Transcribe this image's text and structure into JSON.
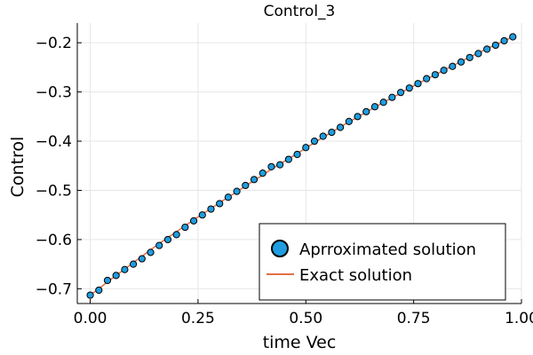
{
  "chart_data": {
    "type": "scatter",
    "title": "Control_3",
    "xlabel": "time Vec",
    "ylabel": "Control",
    "xlim": [
      -0.03,
      1.0
    ],
    "ylim": [
      -0.73,
      -0.16
    ],
    "xticks": [
      0.0,
      0.25,
      0.5,
      0.75,
      1.0
    ],
    "xtick_labels": [
      "0.00",
      "0.25",
      "0.50",
      "0.75",
      "1.00"
    ],
    "yticks": [
      -0.7,
      -0.6,
      -0.5,
      -0.4,
      -0.3,
      -0.2
    ],
    "ytick_labels": [
      "−0.7",
      "−0.6",
      "−0.5",
      "−0.4",
      "−0.3",
      "−0.2"
    ],
    "grid": true,
    "legend_position": "bottom-right",
    "colors": {
      "scatter": "#1f9de0",
      "line": "#e26f46",
      "axis": "#000000",
      "grid": "#e6e6e6"
    },
    "series": [
      {
        "name": "Aprroximated solution",
        "kind": "scatter",
        "x": [
          0.0,
          0.02,
          0.04,
          0.06,
          0.08,
          0.1,
          0.12,
          0.14,
          0.16,
          0.18,
          0.2,
          0.22,
          0.24,
          0.26,
          0.28,
          0.3,
          0.32,
          0.34,
          0.36,
          0.38,
          0.4,
          0.42,
          0.44,
          0.46,
          0.48,
          0.5,
          0.52,
          0.54,
          0.56,
          0.58,
          0.6,
          0.62,
          0.64,
          0.66,
          0.68,
          0.7,
          0.72,
          0.74,
          0.76,
          0.78,
          0.8,
          0.82,
          0.84,
          0.86,
          0.88,
          0.9,
          0.92,
          0.94,
          0.96,
          0.98
        ],
        "y": [
          -0.713,
          -0.703,
          -0.683,
          -0.673,
          -0.661,
          -0.65,
          -0.639,
          -0.626,
          -0.612,
          -0.6,
          -0.59,
          -0.575,
          -0.562,
          -0.55,
          -0.538,
          -0.527,
          -0.514,
          -0.502,
          -0.49,
          -0.478,
          -0.465,
          -0.452,
          -0.448,
          -0.437,
          -0.427,
          -0.413,
          -0.4,
          -0.39,
          -0.382,
          -0.372,
          -0.36,
          -0.35,
          -0.34,
          -0.33,
          -0.321,
          -0.311,
          -0.301,
          -0.292,
          -0.283,
          -0.273,
          -0.265,
          -0.256,
          -0.248,
          -0.239,
          -0.23,
          -0.222,
          -0.213,
          -0.205,
          -0.196,
          -0.188
        ]
      },
      {
        "name": "Exact solution",
        "kind": "line",
        "x": [
          0.0,
          0.02,
          0.04,
          0.06,
          0.08,
          0.1,
          0.12,
          0.14,
          0.16,
          0.18,
          0.2,
          0.22,
          0.24,
          0.26,
          0.28,
          0.3,
          0.32,
          0.34,
          0.36,
          0.38,
          0.4,
          0.42,
          0.44,
          0.46,
          0.48,
          0.5,
          0.52,
          0.54,
          0.56,
          0.58,
          0.6,
          0.62,
          0.64,
          0.66,
          0.68,
          0.7,
          0.72,
          0.74,
          0.76,
          0.78,
          0.8,
          0.82,
          0.84,
          0.86,
          0.88,
          0.9,
          0.92,
          0.94,
          0.96,
          0.98
        ],
        "y": [
          -0.713,
          -0.7,
          -0.686,
          -0.673,
          -0.66,
          -0.647,
          -0.634,
          -0.621,
          -0.608,
          -0.596,
          -0.584,
          -0.572,
          -0.56,
          -0.548,
          -0.537,
          -0.525,
          -0.514,
          -0.503,
          -0.491,
          -0.48,
          -0.469,
          -0.457,
          -0.446,
          -0.436,
          -0.425,
          -0.414,
          -0.403,
          -0.392,
          -0.382,
          -0.371,
          -0.361,
          -0.351,
          -0.341,
          -0.331,
          -0.321,
          -0.312,
          -0.302,
          -0.292,
          -0.283,
          -0.274,
          -0.265,
          -0.256,
          -0.247,
          -0.238,
          -0.229,
          -0.221,
          -0.212,
          -0.204,
          -0.196,
          -0.188
        ]
      }
    ]
  }
}
